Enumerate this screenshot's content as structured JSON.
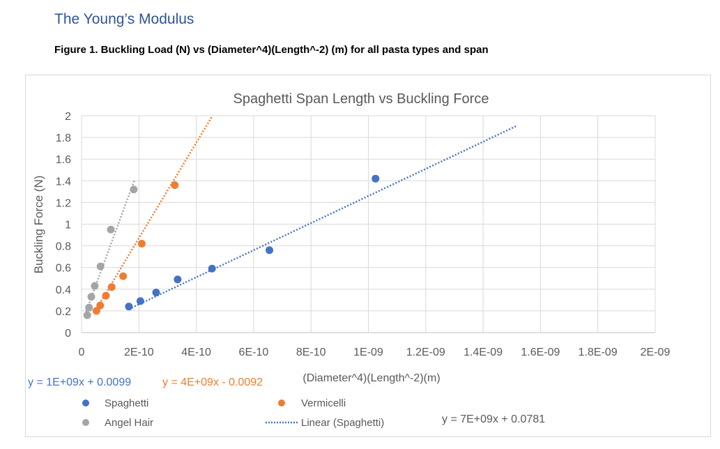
{
  "document": {
    "heading": "The Young’s Modulus",
    "caption": "Figure 1. Buckling Load (N) vs (Diameter^4)(Length^-2) (m) for all pasta types and span"
  },
  "chart_data": {
    "type": "scatter",
    "title": "Spaghetti Span Length vs Buckling Force",
    "xlabel": "(Diameter^4)(Length^-2)(m)",
    "ylabel": "Buckling Force (N)",
    "xlim": [
      0,
      2e-09
    ],
    "ylim": [
      0,
      2
    ],
    "xticks": [
      0,
      2e-10,
      4e-10,
      6e-10,
      8e-10,
      1e-09,
      1.2e-09,
      1.4e-09,
      1.6e-09,
      1.8e-09,
      2e-09
    ],
    "xtick_labels": [
      "0",
      "2E-10",
      "4E-10",
      "6E-10",
      "8E-10",
      "1E-09",
      "1.2E-09",
      "1.4E-09",
      "1.6E-09",
      "1.8E-09",
      "2E-09"
    ],
    "yticks": [
      0,
      0.2,
      0.4,
      0.6,
      0.8,
      1,
      1.2,
      1.4,
      1.6,
      1.8,
      2
    ],
    "ytick_labels": [
      "0",
      "0.2",
      "0.4",
      "0.6",
      "0.8",
      "1",
      "1.2",
      "1.4",
      "1.6",
      "1.8",
      "2"
    ],
    "grid": true,
    "legend_position": "bottom",
    "series": [
      {
        "name": "Spaghetti",
        "color": "#4472c4",
        "x": [
          1.65e-10,
          2.05e-10,
          2.6e-10,
          3.35e-10,
          4.55e-10,
          6.55e-10,
          1.025e-09
        ],
        "y": [
          0.24,
          0.29,
          0.37,
          0.49,
          0.59,
          0.76,
          1.42
        ]
      },
      {
        "name": "Vermicelli",
        "color": "#ed7d31",
        "x": [
          5.2e-11,
          6.5e-11,
          8.5e-11,
          1.05e-10,
          1.45e-10,
          2.1e-10,
          3.25e-10
        ],
        "y": [
          0.2,
          0.25,
          0.34,
          0.42,
          0.52,
          0.82,
          1.36
        ]
      },
      {
        "name": "Angel Hair",
        "color": "#a5a5a5",
        "x": [
          2e-11,
          2.6e-11,
          3.4e-11,
          4.6e-11,
          6.6e-11,
          1.02e-10,
          1.82e-10
        ],
        "y": [
          0.16,
          0.23,
          0.33,
          0.43,
          0.61,
          0.95,
          1.32
        ]
      }
    ],
    "trendlines": [
      {
        "series": "Spaghetti",
        "slope": 1250000000.0,
        "intercept": 0.0099,
        "x_range": [
          1.75e-10,
          1.52e-09
        ],
        "color": "#4472c4",
        "equation": "y = 1E+09x + 0.0099",
        "legend": "Linear (Spaghetti)"
      },
      {
        "series": "Vermicelli",
        "slope": 4400000000.0,
        "intercept": -0.0092,
        "x_range": [
          4.5e-11,
          5.1e-10
        ],
        "color": "#ed7d31",
        "equation": "y = 4E+09x - 0.0092"
      },
      {
        "series": "Angel Hair",
        "slope": 7200000000.0,
        "intercept": 0.0781,
        "x_range": [
          1.2e-11,
          1.85e-10
        ],
        "color": "#a5a5a5",
        "equation": "y = 7E+09x + 0.0781"
      }
    ],
    "legend": {
      "items": [
        {
          "label": "Spaghetti",
          "kind": "marker",
          "color": "#4472c4"
        },
        {
          "label": "Vermicelli",
          "kind": "marker",
          "color": "#ed7d31"
        },
        {
          "label": "Angel Hair",
          "kind": "marker",
          "color": "#a5a5a5"
        },
        {
          "label": "Linear (Spaghetti)",
          "kind": "dotted-line",
          "color": "#4472c4"
        }
      ]
    }
  }
}
